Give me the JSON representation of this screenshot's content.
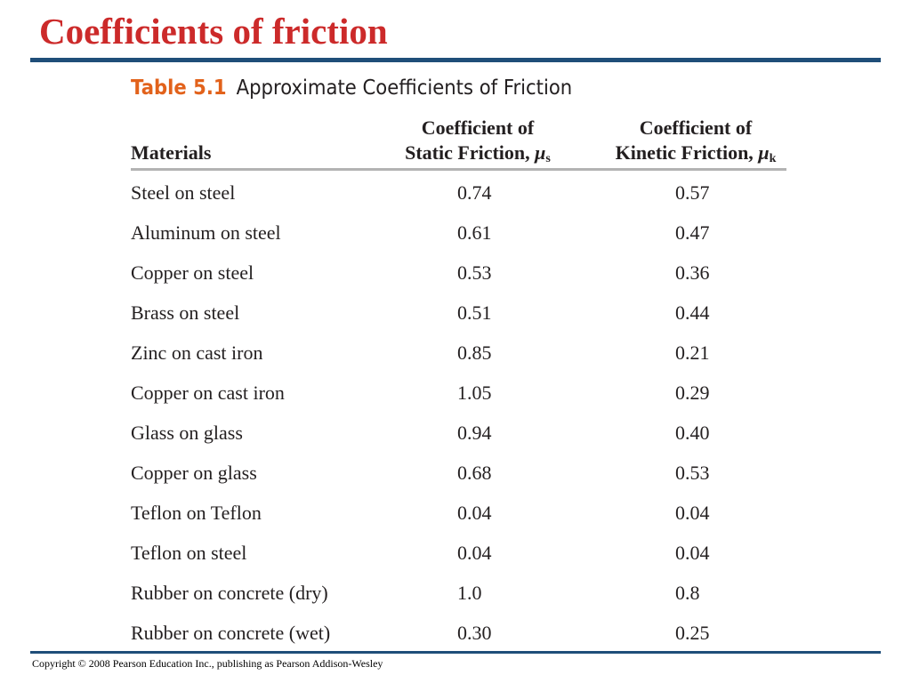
{
  "slide": {
    "title": "Coefficients of friction",
    "copyright": "Copyright © 2008 Pearson Education Inc., publishing as Pearson Addison-Wesley"
  },
  "colors": {
    "title": "#cc2a2a",
    "table_number": "#e2621b",
    "rule": "#1f4e79",
    "header_rule": "#b3b3b3"
  },
  "table": {
    "number": "Table 5.1",
    "caption": "Approximate Coefficients of Friction",
    "headers": {
      "materials": "Materials",
      "static_line1": "Coefficient of",
      "static_line2": "Static Friction,",
      "static_symbol": "μ",
      "static_sub": "s",
      "kinetic_line1": "Coefficient of",
      "kinetic_line2": "Kinetic Friction,",
      "kinetic_symbol": "μ",
      "kinetic_sub": "k"
    },
    "rows": [
      {
        "material": "Steel on steel",
        "static": "0.74",
        "kinetic": "0.57"
      },
      {
        "material": "Aluminum on steel",
        "static": "0.61",
        "kinetic": "0.47"
      },
      {
        "material": "Copper on steel",
        "static": "0.53",
        "kinetic": "0.36"
      },
      {
        "material": "Brass on steel",
        "static": "0.51",
        "kinetic": "0.44"
      },
      {
        "material": "Zinc on cast iron",
        "static": "0.85",
        "kinetic": "0.21"
      },
      {
        "material": "Copper on cast iron",
        "static": "1.05",
        "kinetic": "0.29"
      },
      {
        "material": "Glass on glass",
        "static": "0.94",
        "kinetic": "0.40"
      },
      {
        "material": "Copper on glass",
        "static": "0.68",
        "kinetic": "0.53"
      },
      {
        "material": "Teflon on Teflon",
        "static": "0.04",
        "kinetic": "0.04"
      },
      {
        "material": "Teflon on steel",
        "static": "0.04",
        "kinetic": "0.04"
      },
      {
        "material": "Rubber on concrete (dry)",
        "static": "1.0",
        "kinetic": "0.8"
      },
      {
        "material": "Rubber on concrete (wet)",
        "static": "0.30",
        "kinetic": "0.25"
      }
    ]
  }
}
